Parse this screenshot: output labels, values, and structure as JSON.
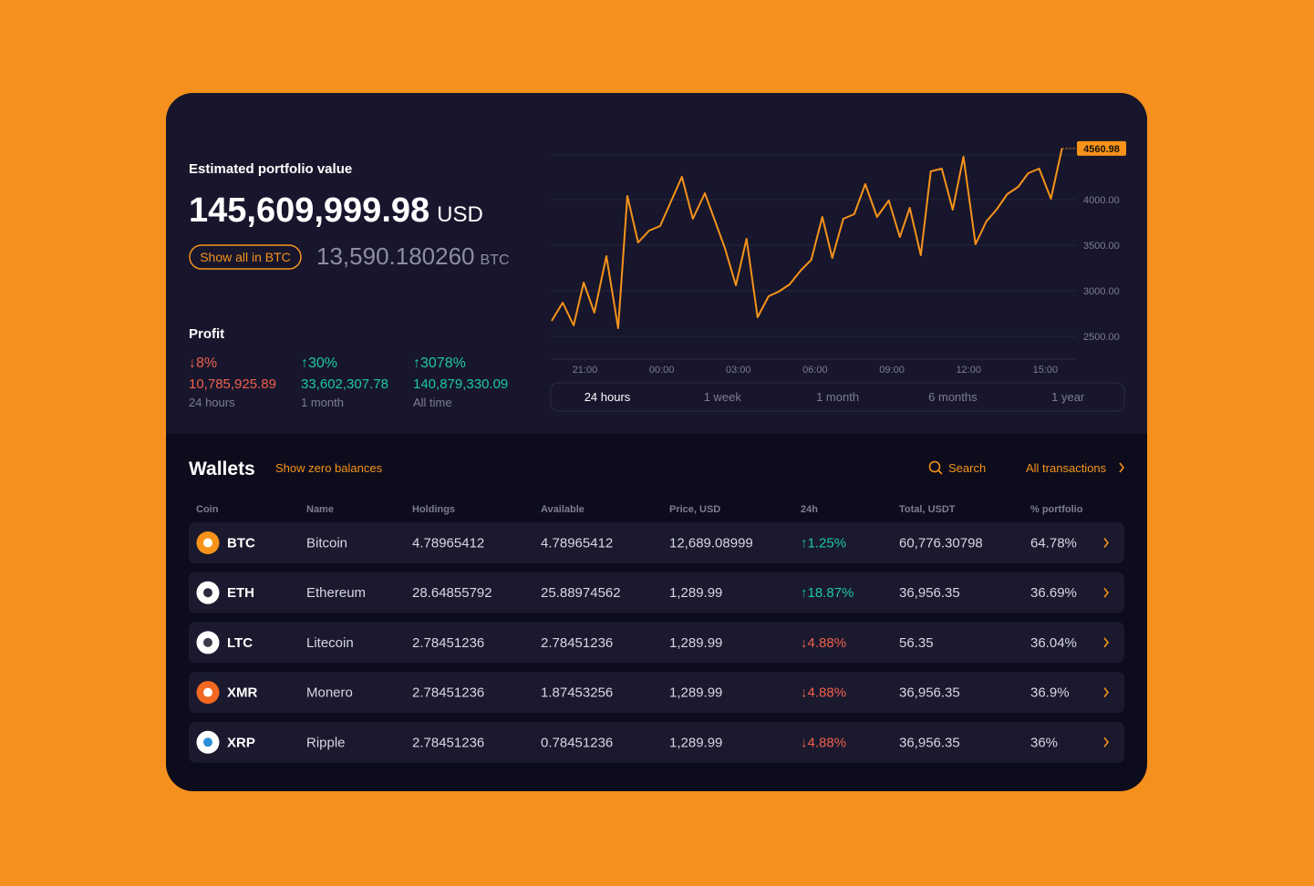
{
  "portfolio": {
    "label": "Estimated portfolio value",
    "value": "145,609,999.98",
    "currency": "USD",
    "button": "Show all in BTC",
    "btc_value": "13,590.180260",
    "btc_currency": "BTC"
  },
  "profit": {
    "title": "Profit",
    "items": [
      {
        "change": "↓8%",
        "amount": "10,785,925.89",
        "period": "24 hours",
        "color": "#f0604d"
      },
      {
        "change": "↑30%",
        "amount": "33,602,307.78",
        "period": "1 month",
        "color": "#1dc9a0"
      },
      {
        "change": "↑3078%",
        "amount": "140,879,330.09",
        "period": "All time",
        "color": "#1dc9a0"
      }
    ]
  },
  "chart_data": {
    "type": "line",
    "color": "#f7931a",
    "x": [
      0,
      0.43,
      0.86,
      1.25,
      1.67,
      2.14,
      2.6,
      2.96,
      3.38,
      3.81,
      4.24,
      5.09,
      5.52,
      5.99,
      6.77,
      7.2,
      7.62,
      8.05,
      8.48,
      8.87,
      9.3,
      9.73,
      10.15,
      10.58,
      10.97,
      11.4,
      11.83,
      12.26,
      12.72,
      13.18,
      13.61,
      14.0,
      14.43,
      14.82,
      15.25,
      15.68,
      16.1,
      16.57,
      16.99,
      17.39,
      17.81,
      18.24,
      18.63,
      19.06,
      19.52,
      19.95
    ],
    "values": [
      2670,
      2870,
      2620,
      3090,
      2760,
      3380,
      2590,
      4040,
      3530,
      3660,
      3710,
      4250,
      3790,
      4070,
      3470,
      3060,
      3570,
      2710,
      2940,
      2990,
      3070,
      3220,
      3340,
      3810,
      3360,
      3790,
      3840,
      4170,
      3810,
      3990,
      3590,
      3910,
      3390,
      4310,
      4340,
      3890,
      4470,
      3510,
      3760,
      3890,
      4060,
      4140,
      4290,
      4340,
      4010,
      4560.98
    ],
    "xlim": [
      0,
      20
    ],
    "xticks": [
      {
        "value": 1.3,
        "label": "21:00"
      },
      {
        "value": 4.3,
        "label": "00:00"
      },
      {
        "value": 7.3,
        "label": "03:00"
      },
      {
        "value": 10.3,
        "label": "06:00"
      },
      {
        "value": 13.3,
        "label": "09:00"
      },
      {
        "value": 16.3,
        "label": "12:00"
      },
      {
        "value": 19.3,
        "label": "15:00"
      }
    ],
    "ylim": [
      2250,
      4650
    ],
    "yticks": [
      {
        "value": 2500,
        "label": "2500.00"
      },
      {
        "value": 3000,
        "label": "3000.00"
      },
      {
        "value": 3500,
        "label": "3500.00"
      },
      {
        "value": 4000,
        "label": "4000.00"
      }
    ],
    "grid": true
  },
  "ranges": [
    "24 hours",
    "1 week",
    "1 month",
    "6 months",
    "1 year"
  ],
  "active_range": 0,
  "wallets": {
    "title": "Wallets",
    "toggle": "Show zero balances",
    "search": "Search",
    "all_transactions": "All transactions",
    "columns": [
      "Coin",
      "Name",
      "Holdings",
      "Available",
      "Price, USD",
      "24h",
      "Total, USDT",
      "% portfolio"
    ],
    "rows": [
      {
        "coin": "BTC",
        "name": "Bitcoin",
        "holdings": "4.78965412",
        "available": "4.78965412",
        "price": "12,689.08999",
        "change": "↑1.25%",
        "total": "60,776.30798",
        "portfolio": "64.78%",
        "change_color": "#1dc9a0",
        "icon_color": "#f7931a",
        "icon_inner": "#ffffff"
      },
      {
        "coin": "ETH",
        "name": "Ethereum",
        "holdings": "28.64855792",
        "available": "25.88974562",
        "price": "1,289.99",
        "change": "↑18.87%",
        "total": "36,956.35",
        "portfolio": "36.69%",
        "change_color": "#1dc9a0",
        "icon_color": "#ffffff",
        "icon_inner": "#2a2a3a"
      },
      {
        "coin": "LTC",
        "name": "Litecoin",
        "holdings": "2.78451236",
        "available": "2.78451236",
        "price": "1,289.99",
        "change": "↓4.88%",
        "total": "56.35",
        "portfolio": "36.04%",
        "change_color": "#f0604d",
        "icon_color": "#ffffff",
        "icon_inner": "#3a3a4a"
      },
      {
        "coin": "XMR",
        "name": "Monero",
        "holdings": "2.78451236",
        "available": "1.87453256",
        "price": "1,289.99",
        "change": "↓4.88%",
        "total": "36,956.35",
        "portfolio": "36.9%",
        "change_color": "#f0604d",
        "icon_color": "#f26822",
        "icon_inner": "#ffffff"
      },
      {
        "coin": "XRP",
        "name": "Ripple",
        "holdings": "2.78451236",
        "available": "0.78451236",
        "price": "1,289.99",
        "change": "↓4.88%",
        "total": "36,956.35",
        "portfolio": "36%",
        "change_color": "#f0604d",
        "icon_color": "#ffffff",
        "icon_inner": "#2b8fd6"
      }
    ]
  }
}
